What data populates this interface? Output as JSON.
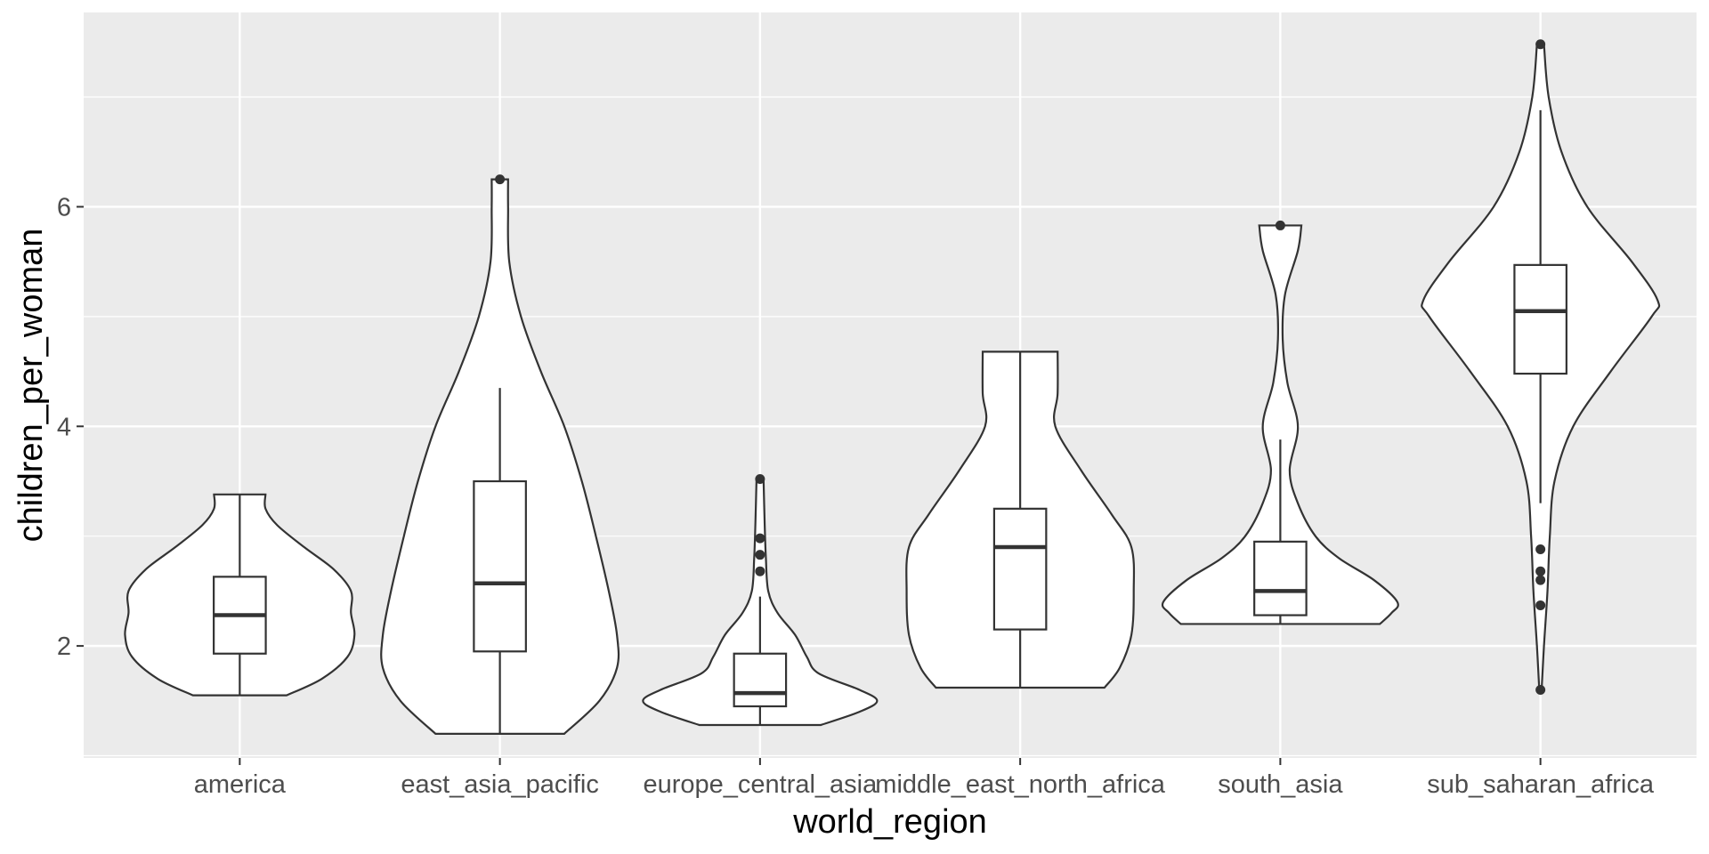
{
  "chart_data": {
    "type": "violin",
    "title": "",
    "xlabel": "world_region",
    "ylabel": "children_per_woman",
    "ylim": [
      0.98,
      7.77
    ],
    "grid": true,
    "y_ticks": [
      2,
      4,
      6
    ],
    "categories": [
      "america",
      "east_asia_pacific",
      "europe_central_asia",
      "middle_east_north_africa",
      "south_asia",
      "sub_saharan_africa"
    ],
    "groups": [
      {
        "category": "america",
        "min": 1.55,
        "max": 3.38,
        "box": {
          "lower_whisker": 1.55,
          "q1": 1.93,
          "median": 2.28,
          "q3": 2.63,
          "upper_whisker": 3.38
        },
        "outliers": [],
        "density": [
          [
            1.55,
            0.4
          ],
          [
            1.7,
            0.7
          ],
          [
            1.9,
            0.92
          ],
          [
            2.1,
            0.98
          ],
          [
            2.3,
            0.95
          ],
          [
            2.5,
            0.95
          ],
          [
            2.7,
            0.8
          ],
          [
            2.9,
            0.55
          ],
          [
            3.1,
            0.32
          ],
          [
            3.25,
            0.22
          ],
          [
            3.38,
            0.22
          ]
        ]
      },
      {
        "category": "east_asia_pacific",
        "min": 1.2,
        "max": 6.25,
        "box": {
          "lower_whisker": 1.2,
          "q1": 1.95,
          "median": 2.57,
          "q3": 3.5,
          "upper_whisker": 4.35
        },
        "outliers": [
          6.25
        ],
        "density": [
          [
            1.2,
            0.55
          ],
          [
            1.5,
            0.85
          ],
          [
            1.8,
            1.0
          ],
          [
            2.1,
            1.0
          ],
          [
            2.5,
            0.93
          ],
          [
            3.0,
            0.82
          ],
          [
            3.5,
            0.7
          ],
          [
            4.0,
            0.55
          ],
          [
            4.5,
            0.35
          ],
          [
            5.0,
            0.18
          ],
          [
            5.5,
            0.08
          ],
          [
            6.0,
            0.07
          ],
          [
            6.25,
            0.07
          ]
        ]
      },
      {
        "category": "europe_central_asia",
        "min": 1.28,
        "max": 3.52,
        "box": {
          "lower_whisker": 1.28,
          "q1": 1.45,
          "median": 1.57,
          "q3": 1.93,
          "upper_whisker": 2.45
        },
        "outliers": [
          3.52,
          2.98,
          2.83,
          2.68
        ],
        "density": [
          [
            1.28,
            0.52
          ],
          [
            1.4,
            0.85
          ],
          [
            1.5,
            1.0
          ],
          [
            1.6,
            0.85
          ],
          [
            1.75,
            0.5
          ],
          [
            1.9,
            0.4
          ],
          [
            2.1,
            0.3
          ],
          [
            2.3,
            0.15
          ],
          [
            2.5,
            0.07
          ],
          [
            2.8,
            0.05
          ],
          [
            3.1,
            0.04
          ],
          [
            3.52,
            0.03
          ]
        ]
      },
      {
        "category": "middle_east_north_africa",
        "min": 1.62,
        "max": 4.68,
        "box": {
          "lower_whisker": 1.62,
          "q1": 2.15,
          "median": 2.9,
          "q3": 3.25,
          "upper_whisker": 4.68
        },
        "outliers": [],
        "density": [
          [
            1.62,
            0.72
          ],
          [
            1.8,
            0.85
          ],
          [
            2.1,
            0.95
          ],
          [
            2.5,
            0.97
          ],
          [
            2.9,
            0.95
          ],
          [
            3.2,
            0.78
          ],
          [
            3.6,
            0.52
          ],
          [
            4.0,
            0.3
          ],
          [
            4.3,
            0.32
          ],
          [
            4.68,
            0.32
          ]
        ]
      },
      {
        "category": "south_asia",
        "min": 2.2,
        "max": 5.83,
        "box": {
          "lower_whisker": 2.2,
          "q1": 2.28,
          "median": 2.5,
          "q3": 2.95,
          "upper_whisker": 3.88
        },
        "outliers": [
          5.83
        ],
        "density": [
          [
            2.2,
            0.85
          ],
          [
            2.3,
            0.95
          ],
          [
            2.4,
            1.0
          ],
          [
            2.6,
            0.8
          ],
          [
            2.8,
            0.5
          ],
          [
            3.0,
            0.3
          ],
          [
            3.3,
            0.15
          ],
          [
            3.6,
            0.08
          ],
          [
            4.0,
            0.15
          ],
          [
            4.4,
            0.06
          ],
          [
            4.8,
            0.02
          ],
          [
            5.2,
            0.04
          ],
          [
            5.6,
            0.15
          ],
          [
            5.83,
            0.18
          ]
        ]
      },
      {
        "category": "sub_saharan_africa",
        "min": 1.6,
        "max": 7.48,
        "box": {
          "lower_whisker": 3.3,
          "q1": 4.48,
          "median": 5.05,
          "q3": 5.47,
          "upper_whisker": 6.88
        },
        "outliers": [
          7.48,
          2.88,
          2.68,
          2.6,
          2.37,
          1.6
        ],
        "density": [
          [
            1.6,
            0.01
          ],
          [
            2.0,
            0.03
          ],
          [
            2.5,
            0.06
          ],
          [
            3.0,
            0.08
          ],
          [
            3.5,
            0.12
          ],
          [
            4.0,
            0.28
          ],
          [
            4.5,
            0.6
          ],
          [
            5.0,
            0.95
          ],
          [
            5.15,
            1.0
          ],
          [
            5.5,
            0.78
          ],
          [
            6.0,
            0.4
          ],
          [
            6.5,
            0.18
          ],
          [
            7.0,
            0.07
          ],
          [
            7.48,
            0.03
          ]
        ]
      }
    ]
  }
}
